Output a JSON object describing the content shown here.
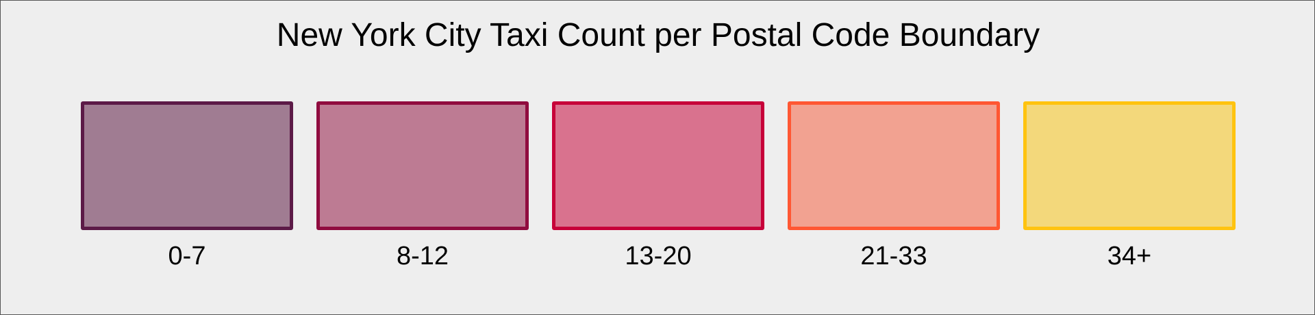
{
  "legend": {
    "title": "New York City Taxi Count per Postal Code Boundary",
    "items": [
      {
        "label": "0-7",
        "stroke": "#5c1a47",
        "fill": "#a07c92"
      },
      {
        "label": "8-12",
        "stroke": "#900c3f",
        "fill": "#bd7b93"
      },
      {
        "label": "13-20",
        "stroke": "#c70039",
        "fill": "#d9728e"
      },
      {
        "label": "21-33",
        "stroke": "#ff5733",
        "fill": "#f2a291"
      },
      {
        "label": "34+",
        "stroke": "#ffc30f",
        "fill": "#f3d87b"
      }
    ]
  }
}
